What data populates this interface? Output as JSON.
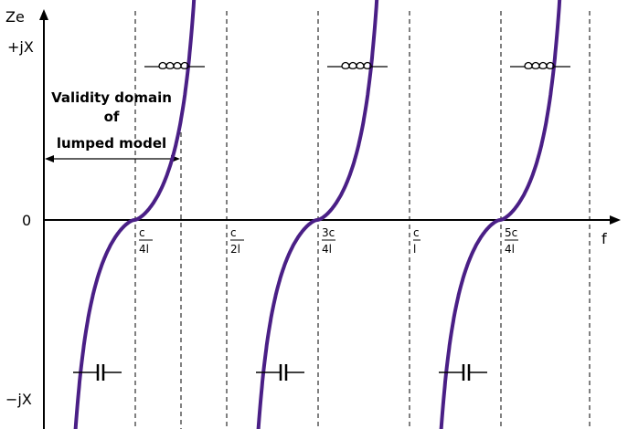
{
  "axes": {
    "y_label": "Ze",
    "x_label": "f",
    "zero_label": "0",
    "plus_label": "+jX",
    "minus_label": "−jX"
  },
  "validity": {
    "line1": "Validity domain",
    "line2": "of",
    "line3": "lumped model"
  },
  "ticks": [
    {
      "num": "c",
      "den": "4l"
    },
    {
      "num": "c",
      "den": "2l"
    },
    {
      "num": "3c",
      "den": "4l"
    },
    {
      "num": "c",
      "den": "l"
    },
    {
      "num": "5c",
      "den": "4l"
    }
  ],
  "symbols": {
    "inductor_icon": "inductor-coil",
    "capacitor_icon": "capacitor-plates"
  },
  "colors": {
    "curve": "#4a1f86",
    "axis": "#000000"
  }
}
